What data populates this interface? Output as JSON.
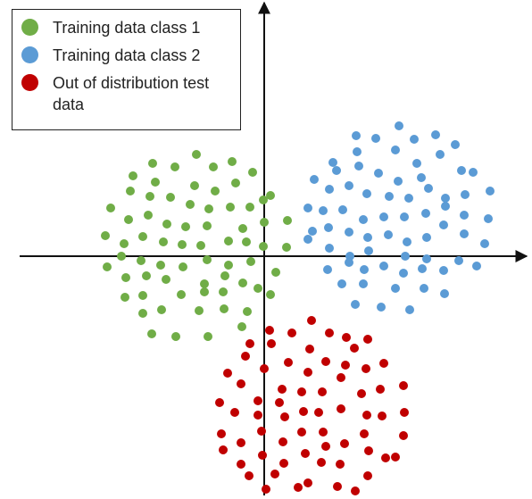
{
  "chart_data": {
    "type": "scatter",
    "xlim": [
      -274,
      294
    ],
    "ylim": [
      -268,
      282
    ],
    "series": [
      {
        "name": "Training data class 1",
        "color": "#70ad47",
        "x": [
          -76,
          -125,
          -100,
          -57,
          -36,
          -13,
          -147,
          -122,
          -78,
          -55,
          -32,
          7,
          -172,
          -150,
          -128,
          -105,
          -83,
          -62,
          -38,
          -16,
          -1,
          -152,
          -130,
          -109,
          -88,
          -64,
          -24,
          -178,
          -157,
          -136,
          -113,
          -92,
          -71,
          -40,
          -20,
          0,
          26,
          -1,
          25,
          -176,
          -160,
          -138,
          -116,
          -91,
          -64,
          -40,
          -15,
          -155,
          -132,
          -110,
          -67,
          -44,
          -24,
          13,
          -156,
          -136,
          -93,
          -67,
          -46,
          -7,
          7,
          -136,
          -115,
          -73,
          -45,
          -19,
          -126,
          -99,
          -63,
          -25
        ],
        "y": [
          114,
          104,
          100,
          100,
          106,
          94,
          90,
          83,
          79,
          73,
          82,
          68,
          54,
          73,
          67,
          66,
          58,
          53,
          55,
          55,
          63,
          41,
          46,
          36,
          33,
          34,
          31,
          23,
          14,
          22,
          16,
          13,
          12,
          17,
          16,
          38,
          40,
          11,
          10,
          -12,
          0,
          -5,
          -10,
          -12,
          -4,
          -10,
          -6,
          -24,
          -22,
          -26,
          -31,
          -22,
          -30,
          -18,
          -46,
          -44,
          -43,
          -40,
          -40,
          -36,
          -43,
          -64,
          -60,
          -61,
          -59,
          -62,
          -87,
          -90,
          -90,
          -79
        ]
      },
      {
        "name": "Training data class 2",
        "color": "#5b9bd5",
        "x": [
          151,
          103,
          125,
          168,
          192,
          214,
          77,
          104,
          147,
          171,
          197,
          56,
          81,
          106,
          128,
          150,
          176,
          221,
          234,
          73,
          95,
          115,
          140,
          162,
          184,
          203,
          225,
          253,
          49,
          66,
          88,
          111,
          134,
          157,
          181,
          203,
          224,
          251,
          54,
          72,
          95,
          116,
          139,
          160,
          182,
          201,
          224,
          247,
          49,
          73,
          96,
          117,
          158,
          182,
          218,
          238,
          71,
          95,
          112,
          134,
          156,
          177,
          201,
          87,
          111,
          147,
          179,
          202,
          102,
          131,
          163
        ],
        "y": [
          146,
          135,
          132,
          131,
          136,
          125,
          105,
          117,
          119,
          104,
          114,
          86,
          96,
          101,
          93,
          84,
          88,
          96,
          94,
          75,
          79,
          70,
          67,
          65,
          76,
          65,
          69,
          73,
          54,
          51,
          52,
          41,
          44,
          44,
          48,
          56,
          46,
          42,
          28,
          32,
          27,
          21,
          24,
          16,
          21,
          35,
          25,
          14,
          19,
          9,
          0,
          6,
          0,
          -3,
          -5,
          -11,
          -15,
          -7,
          -15,
          -11,
          -19,
          -14,
          -16,
          -31,
          -31,
          -36,
          -36,
          -42,
          -54,
          -57,
          -60
        ]
      },
      {
        "name": "Out of distribution test data",
        "color": "#c00000",
        "x": [
          53,
          6,
          31,
          73,
          92,
          116,
          -16,
          8,
          51,
          101,
          -21,
          27,
          69,
          91,
          134,
          -41,
          0,
          49,
          86,
          114,
          -26,
          20,
          42,
          65,
          130,
          156,
          -50,
          -7,
          17,
          86,
          109,
          -33,
          44,
          61,
          157,
          -48,
          -7,
          23,
          115,
          132,
          -26,
          -3,
          21,
          42,
          66,
          90,
          112,
          156,
          -46,
          -2,
          46,
          69,
          117,
          136,
          -26,
          22,
          64,
          85,
          147,
          -17,
          12,
          49,
          2,
          38,
          102,
          82,
          116
        ],
        "y": [
          -72,
          -83,
          -86,
          -86,
          -91,
          -93,
          -98,
          -98,
          -104,
          -103,
          -112,
          -119,
          -118,
          -122,
          -120,
          -131,
          -126,
          -130,
          -136,
          -126,
          -143,
          -149,
          -152,
          -152,
          -149,
          -145,
          -164,
          -162,
          -164,
          -171,
          -154,
          -175,
          -174,
          -175,
          -175,
          -199,
          -178,
          -180,
          -178,
          -179,
          -209,
          -196,
          -208,
          -197,
          -197,
          -210,
          -199,
          -201,
          -217,
          -223,
          -221,
          -213,
          -218,
          -226,
          -233,
          -232,
          -231,
          -233,
          -225,
          -246,
          -244,
          -254,
          -261,
          -259,
          -263,
          -258,
          -246
        ]
      }
    ]
  }
}
